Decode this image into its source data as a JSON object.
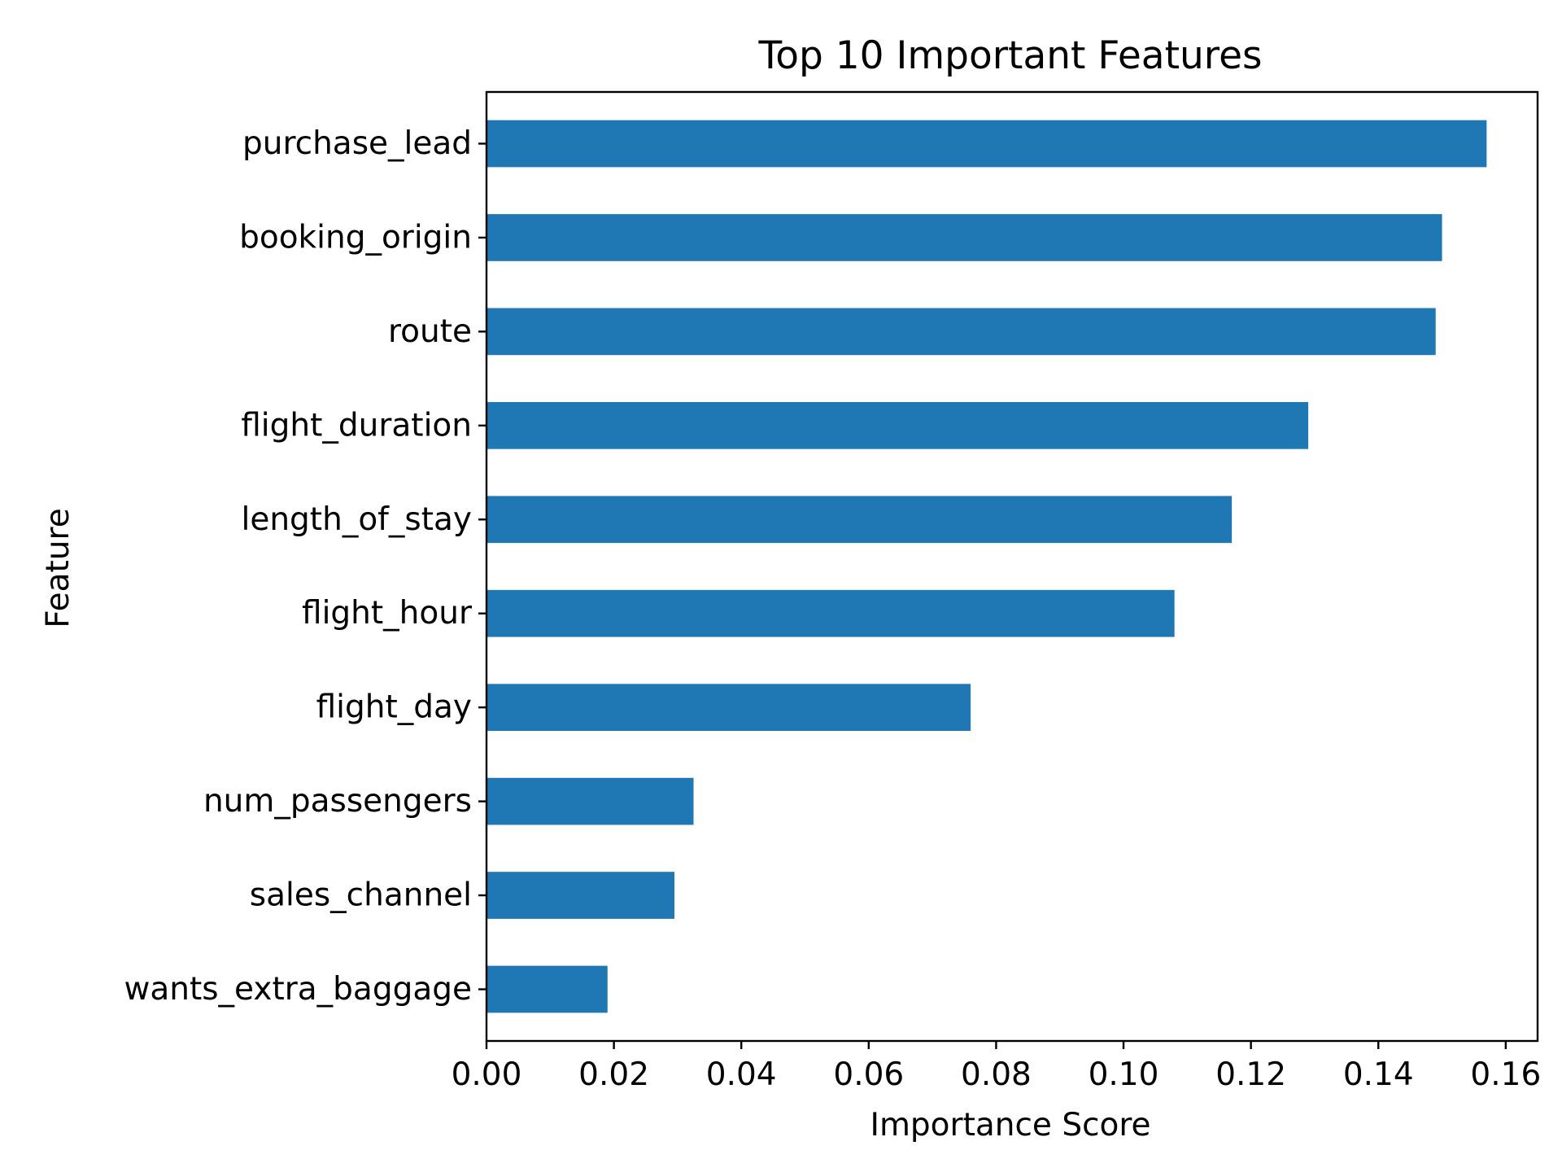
{
  "chart_data": {
    "type": "bar",
    "orientation": "horizontal",
    "title": "Top 10 Important Features",
    "xlabel": "Importance Score",
    "ylabel": "Feature",
    "categories": [
      "purchase_lead",
      "booking_origin",
      "route",
      "flight_duration",
      "length_of_stay",
      "flight_hour",
      "flight_day",
      "num_passengers",
      "sales_channel",
      "wants_extra_baggage"
    ],
    "values": [
      0.157,
      0.15,
      0.149,
      0.129,
      0.117,
      0.108,
      0.076,
      0.0325,
      0.0295,
      0.019
    ],
    "xlim": [
      0.0,
      0.165
    ],
    "xticks": [
      0.0,
      0.02,
      0.04,
      0.06,
      0.08,
      0.1,
      0.12,
      0.14,
      0.16
    ],
    "xtick_labels": [
      "0.00",
      "0.02",
      "0.04",
      "0.06",
      "0.08",
      "0.10",
      "0.12",
      "0.14",
      "0.16"
    ],
    "grid": false,
    "bar_color": "#1f77b4"
  }
}
